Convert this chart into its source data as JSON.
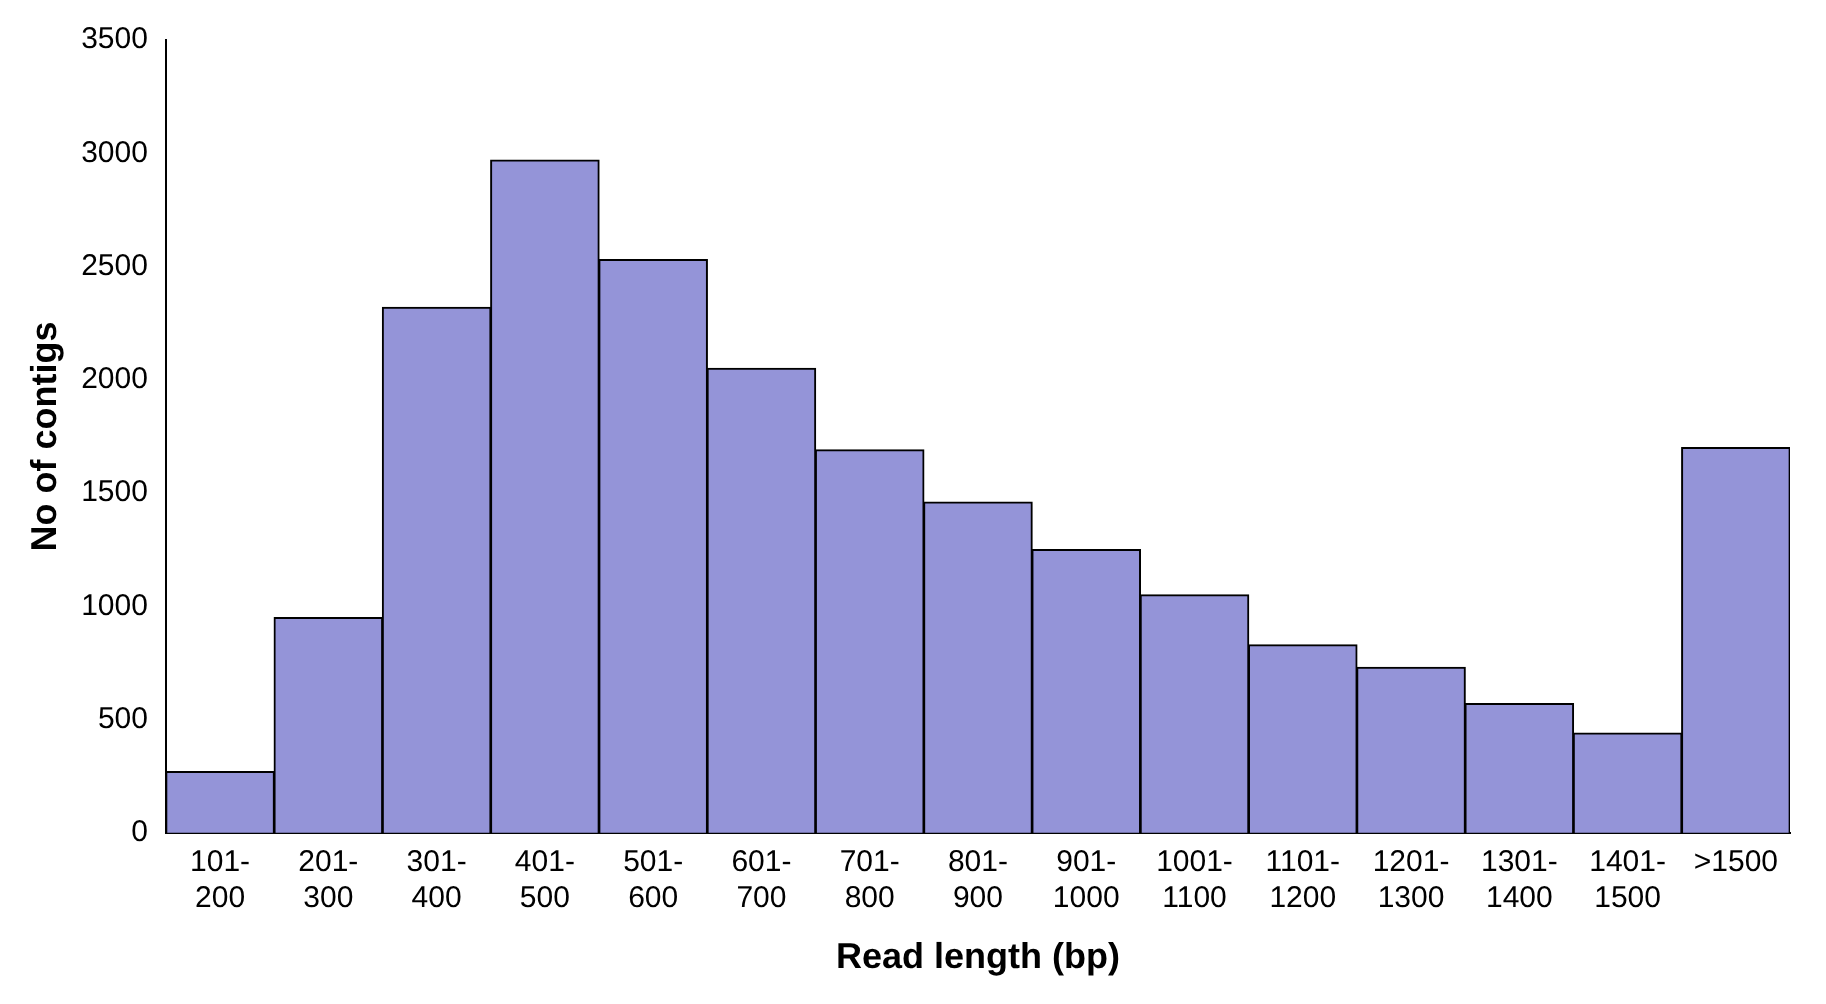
{
  "chart_data": {
    "type": "bar",
    "xlabel": "Read length (bp)",
    "ylabel": "No of contigs",
    "categories": [
      "101-200",
      "201-300",
      "301-400",
      "401-500",
      "501-600",
      "601-700",
      "701-800",
      "801-900",
      "901-1000",
      "1001-1100",
      "1101-1200",
      "1201-1300",
      "1301-1400",
      "1401-1500",
      ">1500"
    ],
    "values": [
      270,
      950,
      2320,
      2970,
      2530,
      2050,
      1690,
      1460,
      1250,
      1050,
      830,
      730,
      570,
      440,
      1700
    ],
    "color": "#9494d8",
    "ylim": [
      0,
      3500
    ],
    "yticks": [
      0,
      500,
      1000,
      1500,
      2000,
      2500,
      3000,
      3500
    ],
    "grid": false,
    "legend": false
  }
}
